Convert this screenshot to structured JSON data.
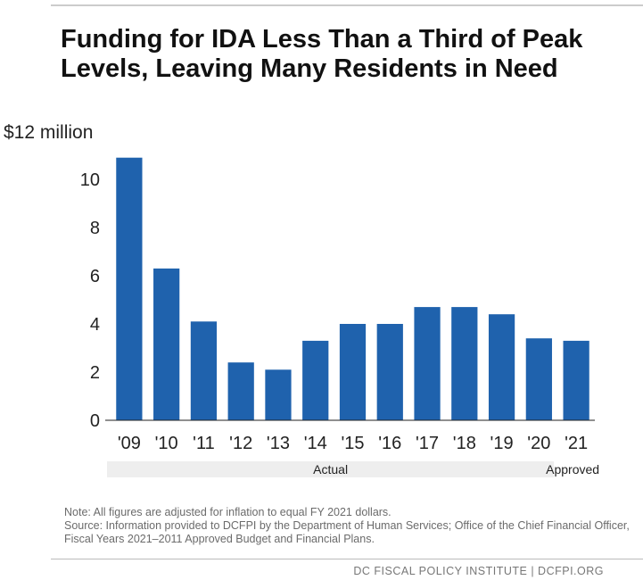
{
  "title": "Funding for IDA Less Than a Third of Peak Levels, Leaving Many Residents in Need",
  "chart_data": {
    "type": "bar",
    "title": "Funding for IDA Less Than a Third of Peak Levels, Leaving Many Residents in Need",
    "categories": [
      "'09",
      "'10",
      "'11",
      "'12",
      "'13",
      "'14",
      "'15",
      "'16",
      "'17",
      "'18",
      "'19",
      "'20",
      "'21"
    ],
    "values": [
      10.9,
      6.3,
      4.1,
      2.4,
      2.1,
      3.3,
      4.0,
      4.0,
      4.7,
      4.7,
      4.4,
      3.4,
      3.3
    ],
    "y_unit_label": "$12 million",
    "yticks": [
      "0",
      "2",
      "4",
      "6",
      "8",
      "10"
    ],
    "ylim": [
      0,
      12
    ],
    "xlabel": "",
    "ylabel": "",
    "grid": false,
    "bar_color": "#1f62ad",
    "groups": [
      {
        "label": "Actual",
        "from": 0,
        "to": 11
      },
      {
        "label": "Approved",
        "from": 12,
        "to": 12
      }
    ]
  },
  "notes": {
    "note": "Note: All figures are adjusted for inflation to equal FY 2021 dollars.",
    "source": "Source: Information provided to DCFPI by the Department of Human Services; Office of the Chief Financial Officer, Fiscal Years 2021–2011 Approved Budget and Financial Plans."
  },
  "credit": "DC FISCAL POLICY INSTITUTE | DCFPI.ORG"
}
